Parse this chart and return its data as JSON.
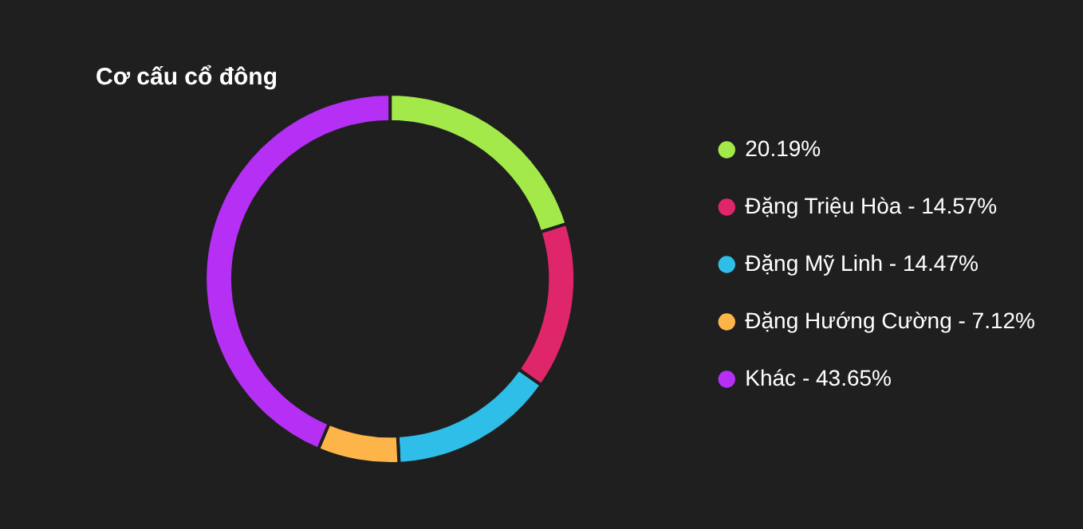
{
  "chart_data": {
    "type": "donut",
    "title": "Cơ cấu cổ đông",
    "categories": [
      "20.19%",
      "Đặng Triệu Hòa - 14.57%",
      "Đặng Mỹ Linh - 14.47%",
      "Đặng Hướng Cường - 7.12%",
      "Khác - 43.65%"
    ],
    "values": [
      20.19,
      14.57,
      14.47,
      7.12,
      43.65
    ],
    "colors": [
      "#a3e94a",
      "#e0266b",
      "#2ebee8",
      "#fdb54a",
      "#b62ff5"
    ],
    "legend": "right"
  }
}
